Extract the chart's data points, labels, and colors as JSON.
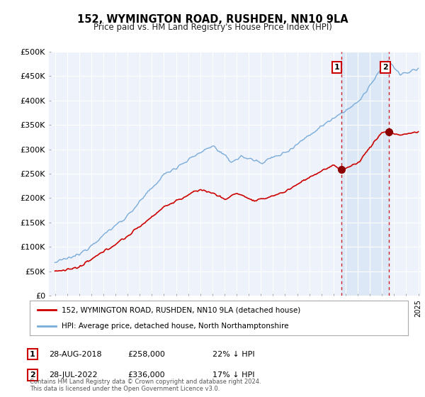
{
  "title": "152, WYMINGTON ROAD, RUSHDEN, NN10 9LA",
  "subtitle": "Price paid vs. HM Land Registry's House Price Index (HPI)",
  "ylabel_ticks": [
    "£0",
    "£50K",
    "£100K",
    "£150K",
    "£200K",
    "£250K",
    "£300K",
    "£350K",
    "£400K",
    "£450K",
    "£500K"
  ],
  "ylim": [
    0,
    500000
  ],
  "xlim_start": 1994.5,
  "xlim_end": 2025.2,
  "sale1_date": 2018.66,
  "sale1_price": 258000,
  "sale2_date": 2022.57,
  "sale2_price": 336000,
  "red_line_color": "#cc0000",
  "blue_line_color": "#7aacda",
  "marker_color": "#8b0000",
  "vline_color": "#cc0000",
  "shade_color": "#dce8f5",
  "legend_line1": "152, WYMINGTON ROAD, RUSHDEN, NN10 9LA (detached house)",
  "legend_line2": "HPI: Average price, detached house, North Northamptonshire",
  "footer": "Contains HM Land Registry data © Crown copyright and database right 2024.\nThis data is licensed under the Open Government Licence v3.0.",
  "background_color": "#ffffff",
  "plot_bg_color": "#eef2fb"
}
